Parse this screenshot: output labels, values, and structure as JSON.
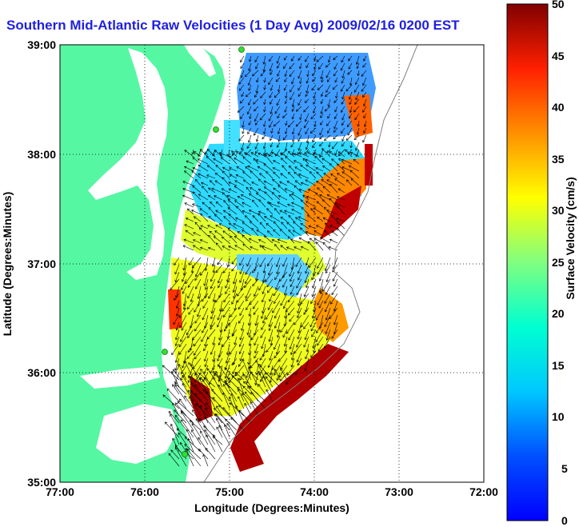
{
  "title": "Southern Mid-Atlantic Raw Velocities (1 Day Avg) 2009/02/16 0200 EST",
  "map": {
    "xlabel": "Longitude (Degrees:Minutes)",
    "ylabel": "Latitude (Degrees:Minutes)",
    "x_ticks": [
      "77:00",
      "76:00",
      "75:00",
      "74:00",
      "73:00",
      "72:00"
    ],
    "y_ticks": [
      "39:00",
      "38:00",
      "37:00",
      "36:00",
      "35:00"
    ],
    "colors": {
      "land": "#55f7a3",
      "water": "#ffffff",
      "grid": "#000000",
      "arrow": "#000000",
      "station": "#33dd33"
    }
  },
  "colorbar": {
    "label": "Surface Velocity (cm/s)",
    "ticks": [
      "50",
      "45",
      "40",
      "35",
      "30",
      "25",
      "20",
      "15",
      "10",
      "5",
      "0"
    ],
    "range": [
      0,
      50
    ],
    "colormap": "jet"
  }
}
